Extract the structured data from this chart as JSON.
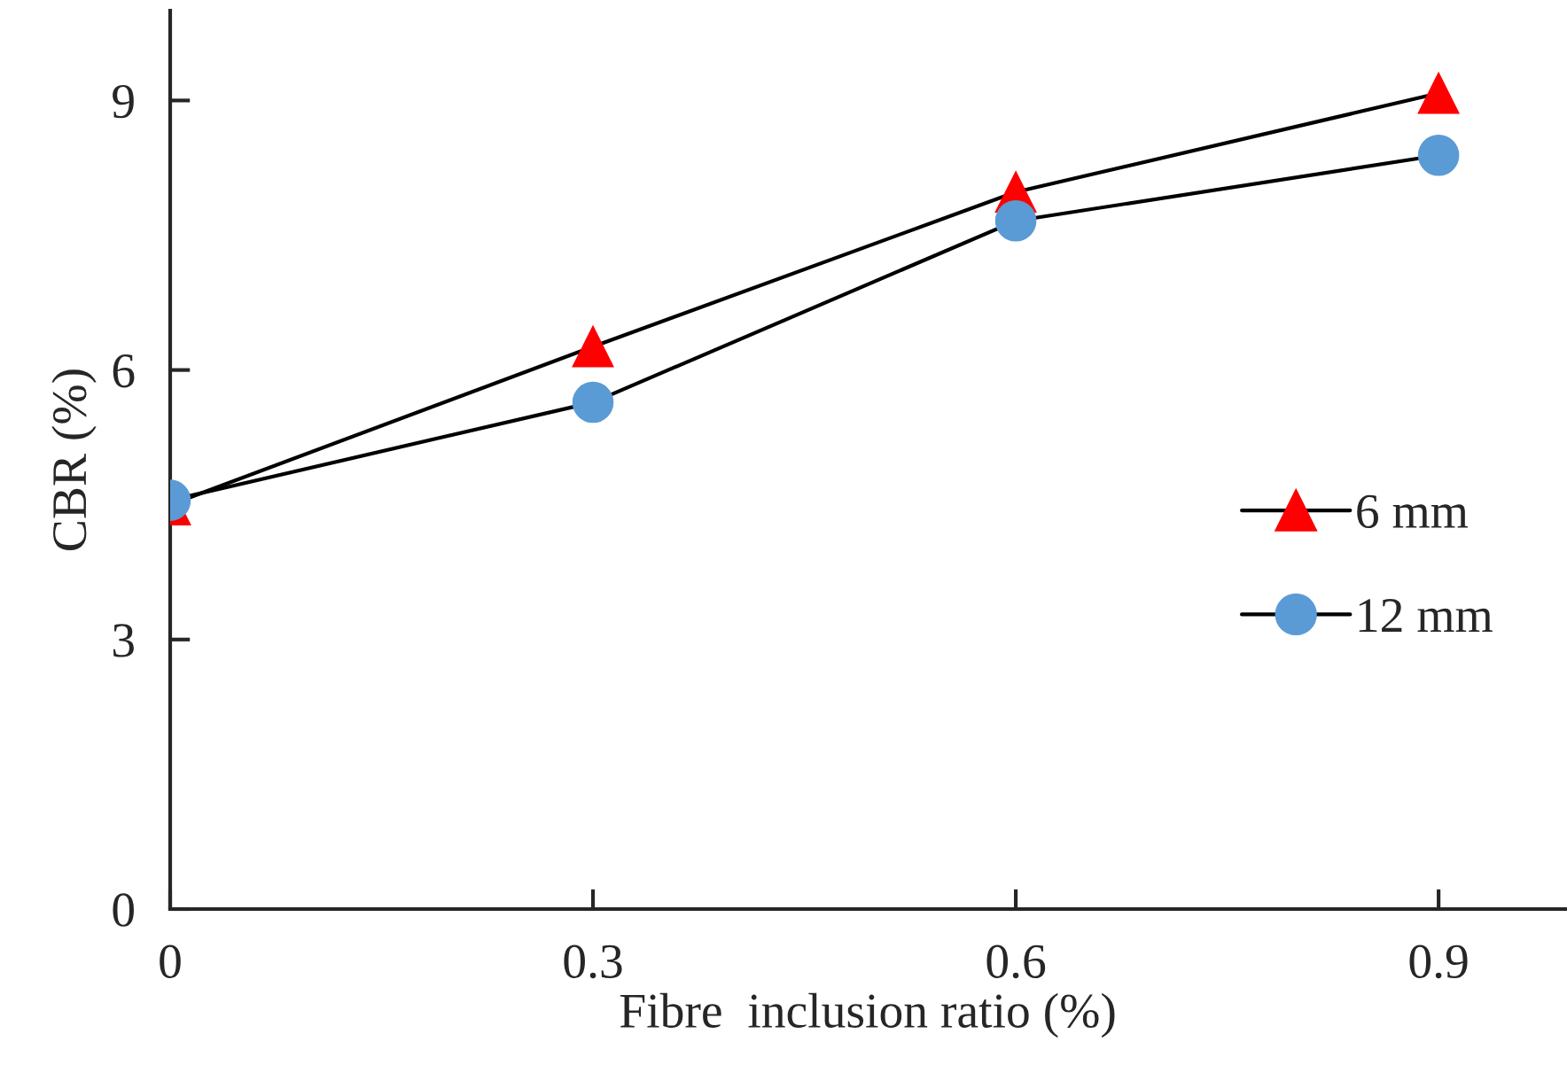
{
  "chart_data": {
    "type": "line",
    "xlabel": "Fibre  inclusion ratio (%)",
    "ylabel": "CBR (%)",
    "x": [
      0,
      0.3,
      0.6,
      0.9
    ],
    "series": [
      {
        "name": "6 mm",
        "color": "#ff0000",
        "marker": "triangle",
        "values": [
          4.5,
          6.26,
          7.98,
          9.08
        ]
      },
      {
        "name": "12 mm",
        "color": "#5b9bd5",
        "marker": "circle",
        "values": [
          4.55,
          5.64,
          7.66,
          8.39
        ]
      }
    ],
    "xlim": [
      0,
      0.99
    ],
    "xticks": [
      0,
      0.3,
      0.6,
      0.9
    ],
    "ylim": [
      0,
      10
    ],
    "yticks": [
      0,
      3,
      6,
      9
    ],
    "grid": false,
    "legend": "right"
  }
}
